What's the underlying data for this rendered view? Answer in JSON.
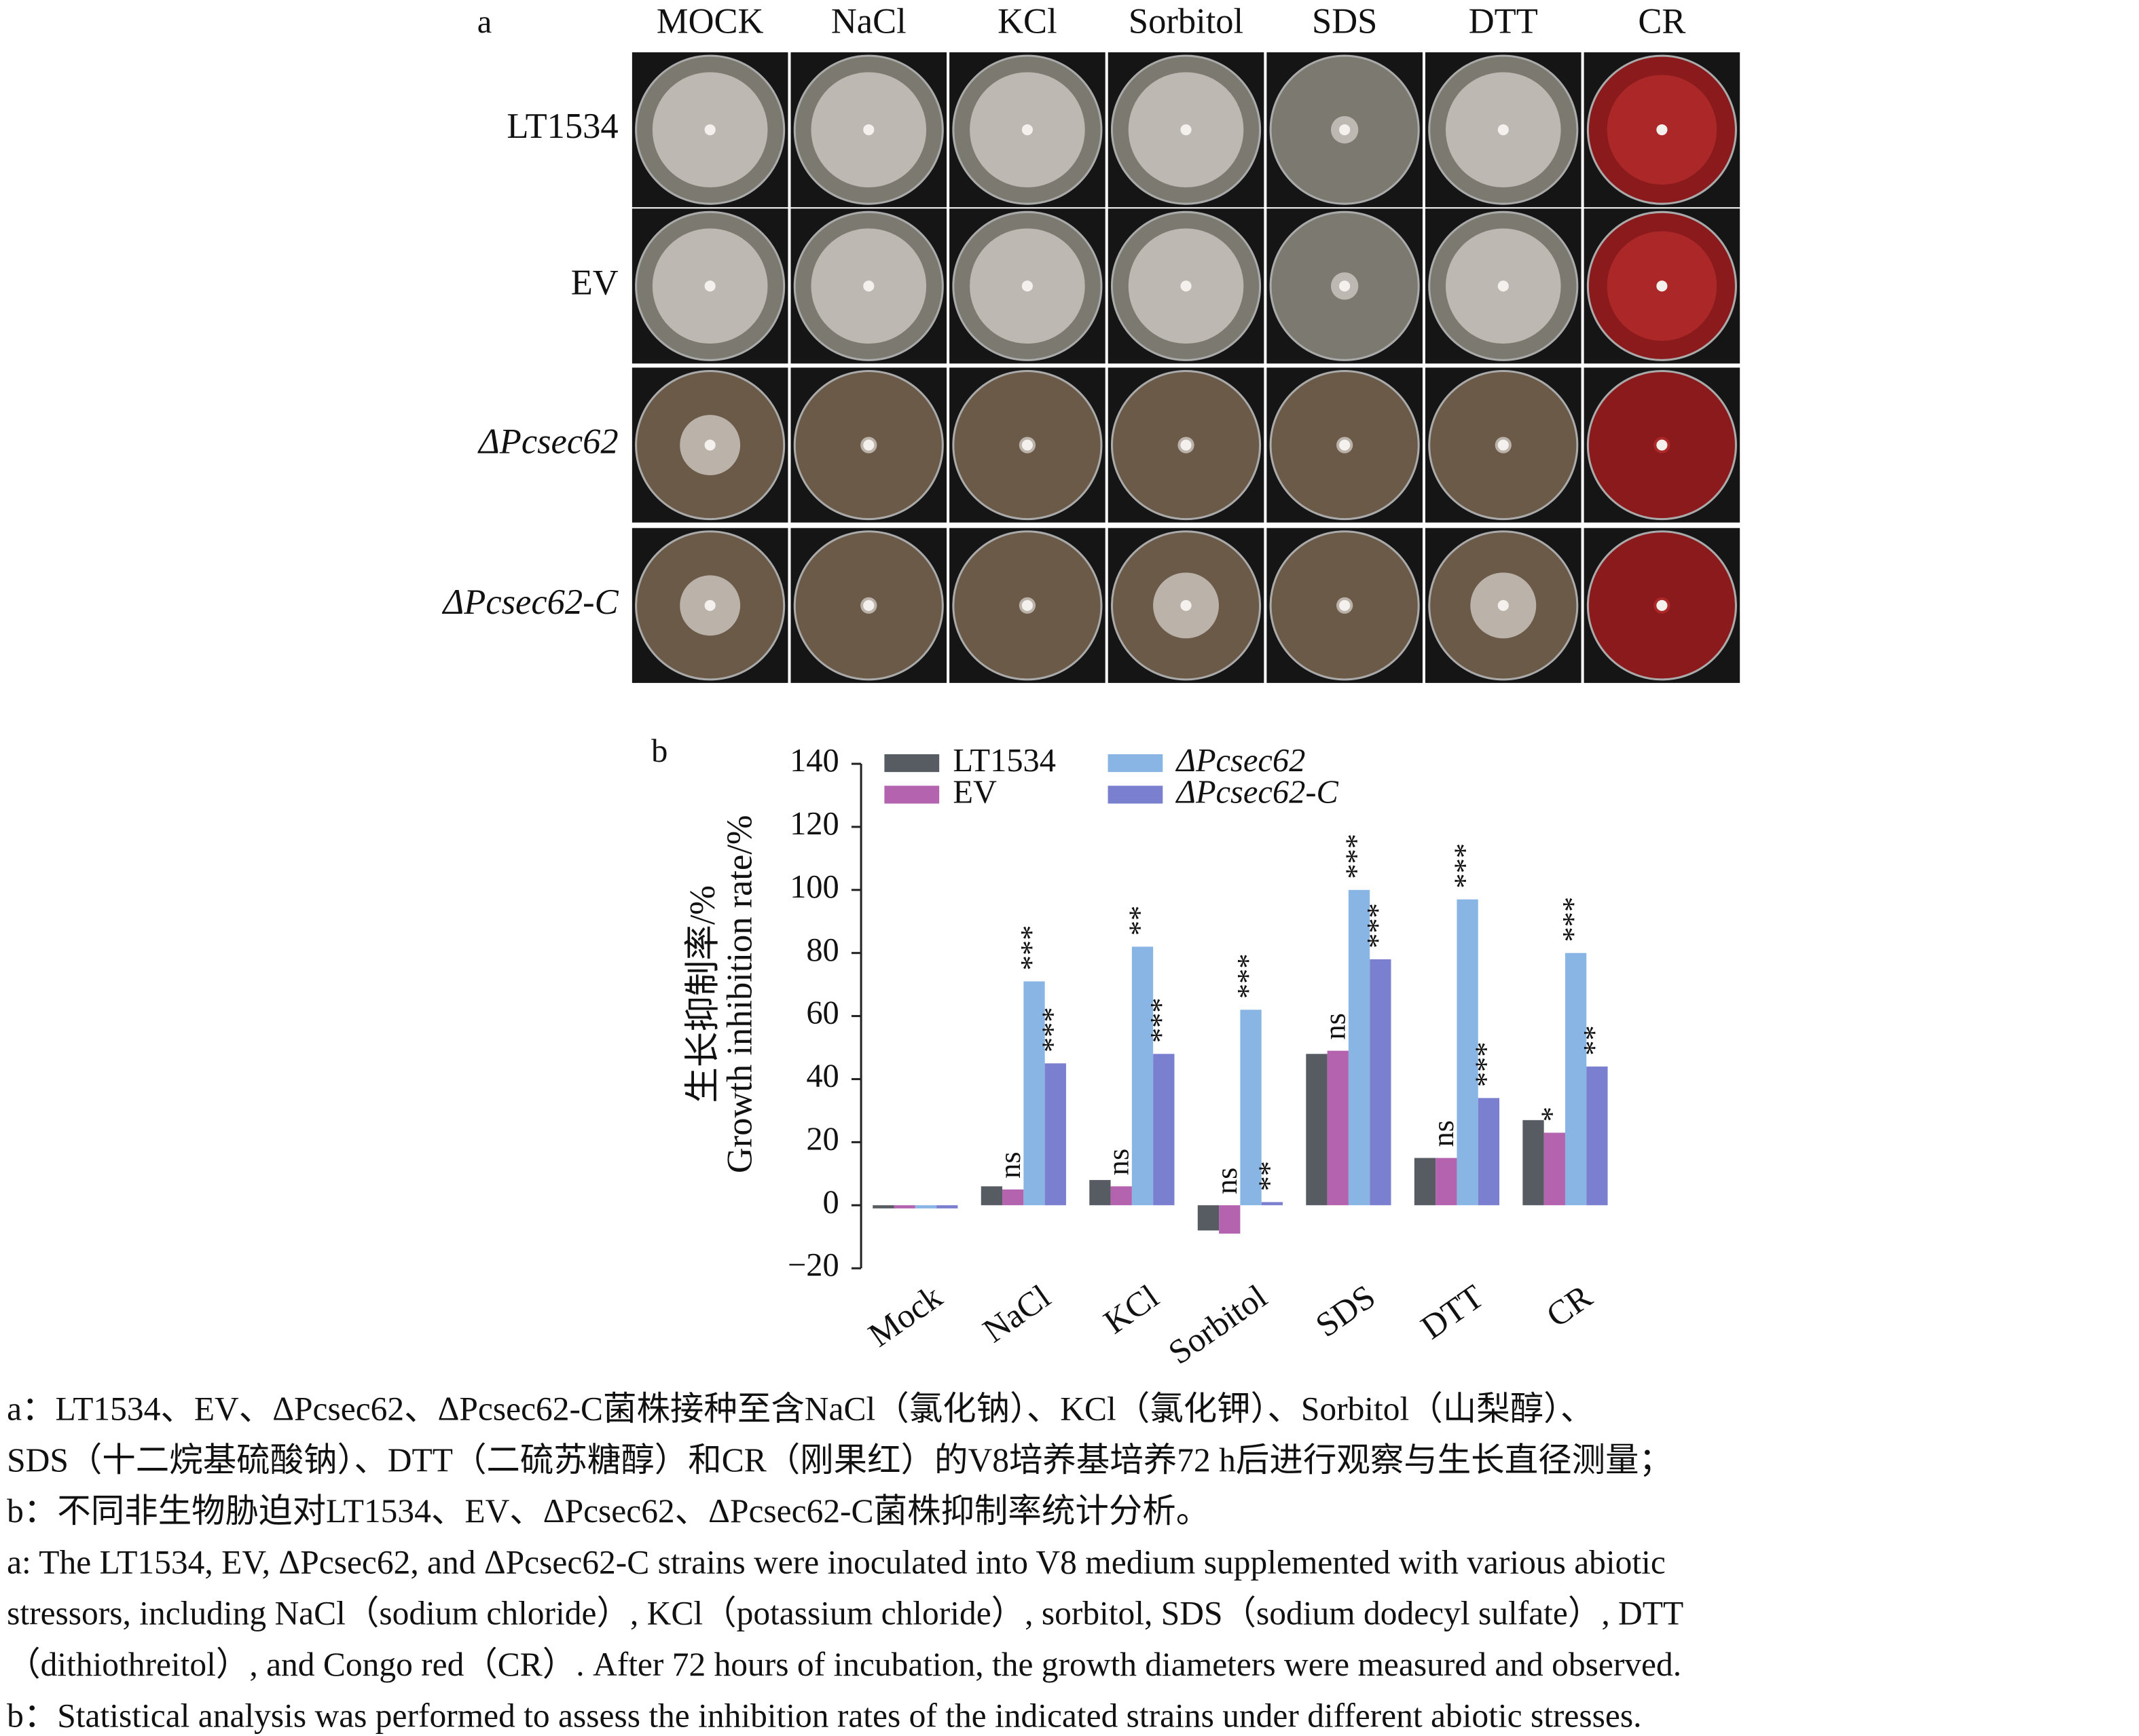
{
  "panel_a": {
    "label": "a",
    "columns": [
      "MOCK",
      "NaCl",
      "KCl",
      "Sorbitol",
      "SDS",
      "DTT",
      "CR"
    ],
    "rows": [
      "LT1534",
      "EV",
      "ΔPcsec62",
      "ΔPcsec62-C"
    ]
  },
  "chart_data": {
    "type": "bar",
    "panel_label": "b",
    "y_label_lines": [
      "生长抑制率/%",
      "Growth inhibition rate/%"
    ],
    "categories": [
      "Mock",
      "NaCl",
      "KCl",
      "Sorbitol",
      "SDS",
      "DTT",
      "CR"
    ],
    "series": [
      {
        "name": "LT1534",
        "color": "#575b62",
        "values": [
          -1,
          6,
          8,
          -8,
          48,
          15,
          27
        ]
      },
      {
        "name": "EV",
        "color": "#b463ae",
        "values": [
          -1,
          5,
          6,
          -9,
          49,
          15,
          23
        ]
      },
      {
        "name": "ΔPcsec62",
        "color": "#88b5e4",
        "values": [
          -1,
          71,
          82,
          62,
          100,
          97,
          80
        ]
      },
      {
        "name": "ΔPcsec62-C",
        "color": "#7a7fcf",
        "values": [
          -1,
          45,
          48,
          1,
          78,
          34,
          44
        ]
      }
    ],
    "significance": [
      {
        "series": 1,
        "category": 1,
        "label": "ns"
      },
      {
        "series": 2,
        "category": 1,
        "label": "***"
      },
      {
        "series": 3,
        "category": 1,
        "label": "***"
      },
      {
        "series": 1,
        "category": 2,
        "label": "ns"
      },
      {
        "series": 2,
        "category": 2,
        "label": "**"
      },
      {
        "series": 3,
        "category": 2,
        "label": "***"
      },
      {
        "series": 1,
        "category": 3,
        "label": "ns"
      },
      {
        "series": 2,
        "category": 3,
        "label": "***"
      },
      {
        "series": 3,
        "category": 3,
        "label": "**"
      },
      {
        "series": 1,
        "category": 4,
        "label": "ns"
      },
      {
        "series": 2,
        "category": 4,
        "label": "***"
      },
      {
        "series": 3,
        "category": 4,
        "label": "***"
      },
      {
        "series": 1,
        "category": 5,
        "label": "ns"
      },
      {
        "series": 2,
        "category": 5,
        "label": "***"
      },
      {
        "series": 3,
        "category": 5,
        "label": "***"
      },
      {
        "series": 1,
        "category": 6,
        "label": "*"
      },
      {
        "series": 2,
        "category": 6,
        "label": "***"
      },
      {
        "series": 3,
        "category": 6,
        "label": "**"
      }
    ],
    "ylim": [
      -20,
      140
    ],
    "yticks": [
      {
        "value": -20,
        "label": "−20"
      },
      0,
      20,
      40,
      60,
      80,
      100,
      120,
      140
    ]
  },
  "caption": {
    "lines": [
      "a：LT1534、EV、ΔPcsec62、ΔPcsec62-C菌株接种至含NaCl（氯化钠）、KCl（氯化钾）、Sorbitol（山梨醇）、",
      "SDS（十二烷基硫酸钠）、DTT（二硫苏糖醇）和CR（刚果红）的V8培养基培养72 h后进行观察与生长直径测量；",
      "b：不同非生物胁迫对LT1534、EV、ΔPcsec62、ΔPcsec62-C菌株抑制率统计分析。",
      "a: The LT1534, EV, ΔPcsec62, and ΔPcsec62-C strains were inoculated into V8 medium supplemented with various abiotic",
      "stressors, including NaCl（sodium chloride）, KCl（potassium chloride）, sorbitol, SDS（sodium dodecyl sulfate）, DTT",
      "（dithiothreitol）, and Congo red（CR）. After 72 hours of incubation, the growth diameters were measured and observed.",
      "b：Statistical analysis was performed to assess the inhibition rates of the indicated strains under different abiotic stresses."
    ]
  }
}
